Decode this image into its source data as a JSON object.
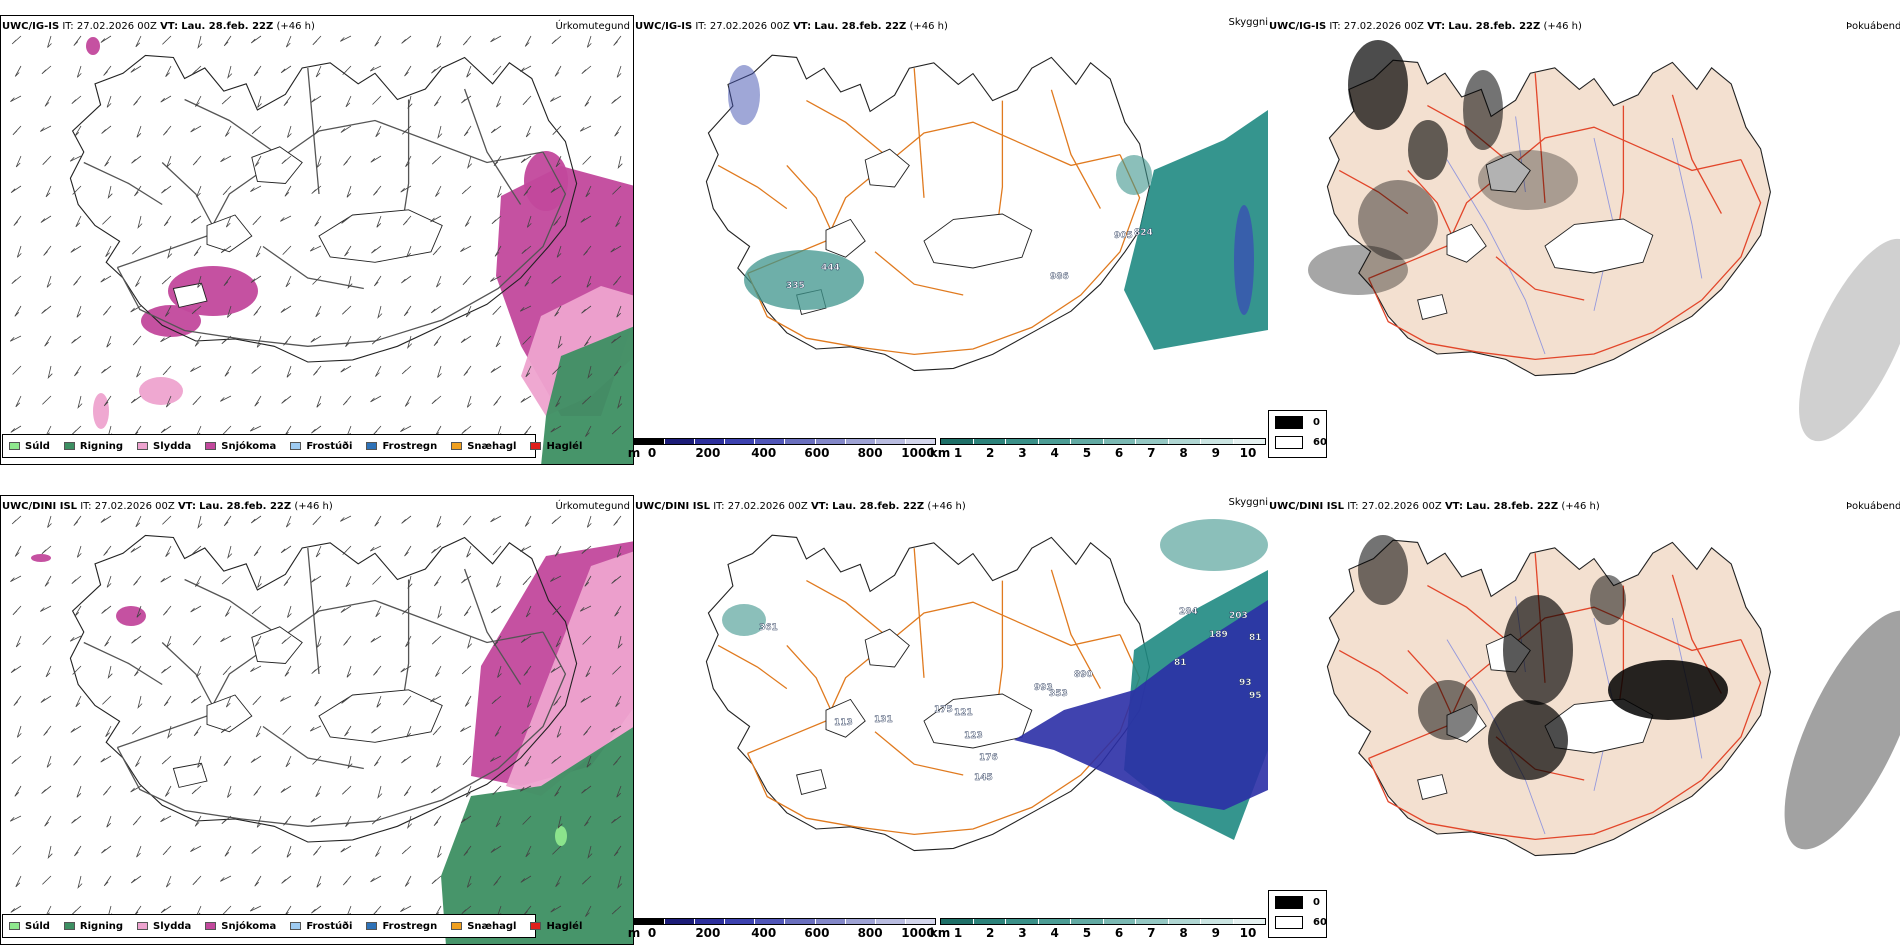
{
  "colors": {
    "outline": "#222222",
    "road": "#e07a1f",
    "road_red": "#e2462a",
    "land_fog": "#f3e0d0",
    "river": "#7c86e0",
    "snow": "#c2489c",
    "sleet": "#eea3cf",
    "rain": "#3d8f62",
    "drizzle": "#8fe88e",
    "cloud_base": "#2f8f86",
    "cloud_top": "#2b2fa6"
  },
  "rows": [
    {
      "model": "UWC/IG-IS",
      "it_label": "IT:",
      "it": "27.02.2026 00Z",
      "vt_label": "VT:",
      "vt": "Lau. 28.feb. 22Z",
      "lead": "(+46 h)"
    },
    {
      "model": "UWC/DINI ISL",
      "it_label": "IT:",
      "it": "27.02.2026 00Z",
      "vt_label": "VT:",
      "vt": "Lau. 28.feb. 22Z",
      "lead": "(+46 h)"
    }
  ],
  "panel_names": {
    "precip": "Úrkomutegund",
    "cloud": "Skyggni",
    "fog": "Þokuábendi"
  },
  "precip_legend": [
    {
      "label": "Súld",
      "color": "#8fe88e"
    },
    {
      "label": "Rigning",
      "color": "#3d8f62"
    },
    {
      "label": "Slydda",
      "color": "#eea3cf"
    },
    {
      "label": "Snjókoma",
      "color": "#c2489c"
    },
    {
      "label": "Frostúði",
      "color": "#9ecbf2"
    },
    {
      "label": "Frostregn",
      "color": "#2e72b8"
    },
    {
      "label": "Snæhagl",
      "color": "#f0a020"
    },
    {
      "label": "Haglél",
      "color": "#e0201c"
    }
  ],
  "colorbar_height": {
    "unit": "m",
    "ticks": [
      "0",
      "200",
      "400",
      "600",
      "800",
      "1000"
    ],
    "colors": [
      "#000000",
      "#1c1c78",
      "#2d2f9c",
      "#3d42b0",
      "#5156b8",
      "#6a6fbe",
      "#8387c8",
      "#9ea2d4",
      "#b9bce0",
      "#d4d6ec"
    ]
  },
  "colorbar_vis": {
    "unit": "km",
    "ticks": [
      "1",
      "2",
      "3",
      "4",
      "5",
      "6",
      "7",
      "8",
      "9",
      "10"
    ],
    "colors": [
      "#1f7068",
      "#2c827a",
      "#3a9088",
      "#4c9d95",
      "#62aaa3",
      "#7bb9b3",
      "#95c8c3",
      "#b0d7d3",
      "#cbe5e2",
      "#e6f2f1"
    ]
  },
  "fog_legend": [
    {
      "label": "0",
      "color": "#000000"
    },
    {
      "label": "60",
      "color": "#ffffff"
    }
  ],
  "map_labels": [
    {
      "cloud": [
        "335",
        "444",
        "986",
        "905",
        "824"
      ]
    },
    {
      "cloud": [
        "361",
        "284",
        "203",
        "189",
        "81",
        "81",
        "93",
        "95",
        "890",
        "993",
        "353",
        "175",
        "113",
        "131",
        "121",
        "123",
        "176",
        "145"
      ]
    }
  ]
}
